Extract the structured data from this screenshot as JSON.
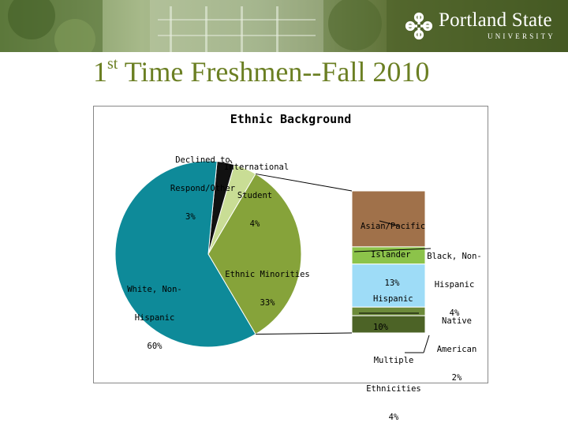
{
  "header": {
    "university_name": "Portland State",
    "university_sub": "UNIVERSITY",
    "logo_icon": "psu-interlocking-logo"
  },
  "slide": {
    "title_prefix": "1",
    "title_sup": "st",
    "title_rest": " Time Freshmen--Fall 2010"
  },
  "colors": {
    "title": "#6b7f23",
    "banner_green": "#5a6e2c",
    "white_nonhispanic": "#0e8a99",
    "declined": "#111111",
    "international": "#c9dd95",
    "ethnic_minorities": "#86a33a",
    "asian_pacific": "#a0714a",
    "black": "#8cc34a",
    "hispanic": "#9edcf7",
    "native_american": "#6c8a3a",
    "multiple": "#4c6326"
  },
  "chart_data": {
    "type": "pie",
    "title": "Ethnic Background",
    "slices": [
      {
        "label": "White, Non-Hispanic",
        "value": 60,
        "display": "60%"
      },
      {
        "label": "Declined to Respond/Other",
        "value": 3,
        "display": "3%"
      },
      {
        "label": "International Student",
        "value": 4,
        "display": "4%"
      },
      {
        "label": "Ethnic Minorities",
        "value": 33,
        "display": "33%"
      }
    ],
    "breakdown": {
      "of": "Ethnic Minorities",
      "type": "bar-of-pie",
      "segments": [
        {
          "label": "Asian/Pacific Islander",
          "value": 13,
          "display": "13%"
        },
        {
          "label": "Black, Non-Hispanic",
          "value": 4,
          "display": "4%"
        },
        {
          "label": "Hispanic",
          "value": 10,
          "display": "10%"
        },
        {
          "label": "Native American",
          "value": 2,
          "display": "2%"
        },
        {
          "label": "Multiple Ethnicities",
          "value": 4,
          "display": "4%"
        }
      ]
    },
    "labels": {
      "white": [
        "White, Non-",
        "Hispanic",
        "60%"
      ],
      "declined": [
        "Declined to",
        "Respond/Other",
        "3%"
      ],
      "international": [
        "International",
        "Student",
        "4%"
      ],
      "minorities": [
        "Ethnic Minorities",
        "33%"
      ],
      "asian": [
        "Asian/Pacific",
        "Islander",
        "13%"
      ],
      "black": [
        "Black, Non-",
        "Hispanic",
        "4%"
      ],
      "hispanic": [
        "Hispanic",
        "10%"
      ],
      "native": [
        "Native",
        "American",
        "2%"
      ],
      "multiple": [
        "Multiple",
        "Ethnicities",
        "4%"
      ]
    }
  }
}
